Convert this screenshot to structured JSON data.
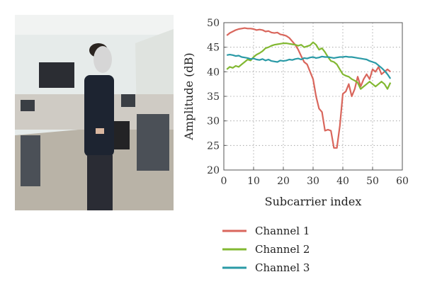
{
  "photo": {
    "description": "",
    "colors": {
      "wall": "#e6ebea",
      "ceiling": "#f1f3f2",
      "floor": "#b9b3a7",
      "tv": "#2b2d33",
      "person_top": "#1d2431",
      "person_legs": "#2a2c34",
      "skin": "#d9b7a0",
      "face_blur": "#d6d6d6",
      "hair": "#2a2420",
      "desk": "#cfcbc4",
      "tower": "#4b5057",
      "chair": "#232325",
      "monitor": "#3a3e44"
    }
  },
  "chart_data": {
    "type": "line",
    "title": "",
    "xlabel": "Subcarrier index",
    "ylabel": "Amplitude (dB)",
    "xlim": [
      0,
      60
    ],
    "ylim": [
      20,
      50
    ],
    "xticks": [
      0,
      10,
      20,
      30,
      40,
      50,
      60
    ],
    "yticks": [
      20,
      25,
      30,
      35,
      40,
      45,
      50
    ],
    "grid": true,
    "grid_style": "dotted",
    "legend_position": "below",
    "series": [
      {
        "name": "Channel 1",
        "color": "#d9665c",
        "x": [
          1,
          2,
          3,
          4,
          5,
          6,
          7,
          8,
          9,
          10,
          11,
          12,
          13,
          14,
          15,
          16,
          17,
          18,
          19,
          20,
          21,
          22,
          23,
          24,
          25,
          26,
          27,
          28,
          29,
          30,
          31,
          32,
          33,
          34,
          35,
          36,
          37,
          38,
          39,
          40,
          41,
          42,
          43,
          44,
          45,
          46,
          47,
          48,
          49,
          50,
          51,
          52,
          53,
          54,
          55,
          56
        ],
        "y": [
          47.4,
          47.9,
          48.2,
          48.5,
          48.7,
          48.8,
          48.9,
          48.8,
          48.8,
          48.7,
          48.5,
          48.6,
          48.5,
          48.2,
          48.3,
          48.0,
          47.9,
          48.0,
          47.6,
          47.5,
          47.3,
          46.9,
          46.2,
          45.5,
          44.5,
          43.2,
          42.0,
          41.5,
          40.0,
          38.5,
          35.0,
          32.5,
          31.8,
          28.0,
          28.2,
          28.0,
          24.5,
          24.5,
          29.0,
          35.5,
          36.0,
          37.5,
          35.0,
          36.5,
          39.0,
          37.0,
          38.5,
          39.5,
          38.5,
          40.5,
          40.0,
          41.0,
          39.5,
          40.0,
          40.5,
          40.0
        ]
      },
      {
        "name": "Channel 2",
        "color": "#82b832",
        "x": [
          1,
          2,
          3,
          4,
          5,
          6,
          7,
          8,
          9,
          10,
          11,
          12,
          13,
          14,
          15,
          16,
          17,
          18,
          19,
          20,
          21,
          22,
          23,
          24,
          25,
          26,
          27,
          28,
          29,
          30,
          31,
          32,
          33,
          34,
          35,
          36,
          37,
          38,
          39,
          40,
          41,
          42,
          43,
          44,
          45,
          46,
          47,
          48,
          49,
          50,
          51,
          52,
          53,
          54,
          55,
          56
        ],
        "y": [
          40.5,
          41.0,
          40.8,
          41.2,
          41.0,
          41.5,
          42.0,
          42.5,
          42.3,
          43.0,
          43.5,
          43.8,
          44.2,
          44.8,
          45.0,
          45.3,
          45.5,
          45.6,
          45.7,
          45.8,
          45.8,
          45.7,
          45.6,
          45.5,
          45.3,
          45.5,
          45.0,
          45.2,
          45.4,
          46.0,
          45.5,
          44.5,
          44.8,
          44.0,
          43.0,
          42.2,
          42.0,
          41.5,
          40.5,
          39.5,
          39.2,
          39.0,
          38.5,
          38.2,
          37.8,
          36.5,
          37.0,
          37.5,
          38.0,
          37.5,
          37.0,
          37.5,
          38.0,
          37.5,
          36.5,
          37.8
        ]
      },
      {
        "name": "Channel 3",
        "color": "#2a9aa6",
        "x": [
          1,
          2,
          3,
          4,
          5,
          6,
          7,
          8,
          9,
          10,
          11,
          12,
          13,
          14,
          15,
          16,
          17,
          18,
          19,
          20,
          21,
          22,
          23,
          24,
          25,
          26,
          27,
          28,
          29,
          30,
          31,
          32,
          33,
          34,
          35,
          36,
          37,
          38,
          39,
          40,
          41,
          42,
          43,
          44,
          45,
          46,
          47,
          48,
          49,
          50,
          51,
          52,
          53,
          54,
          55,
          56
        ],
        "y": [
          43.4,
          43.5,
          43.4,
          43.2,
          43.3,
          43.0,
          42.9,
          42.8,
          42.6,
          42.7,
          42.5,
          42.4,
          42.6,
          42.3,
          42.5,
          42.2,
          42.1,
          42.0,
          42.3,
          42.2,
          42.3,
          42.5,
          42.4,
          42.6,
          42.7,
          42.5,
          42.8,
          42.7,
          42.9,
          43.0,
          42.8,
          42.9,
          43.1,
          43.0,
          43.0,
          42.9,
          42.8,
          42.9,
          43.0,
          43.0,
          43.1,
          43.0,
          43.0,
          42.9,
          42.8,
          42.7,
          42.6,
          42.5,
          42.2,
          42.0,
          41.8,
          41.3,
          40.8,
          40.2,
          39.5,
          38.6
        ]
      }
    ]
  }
}
